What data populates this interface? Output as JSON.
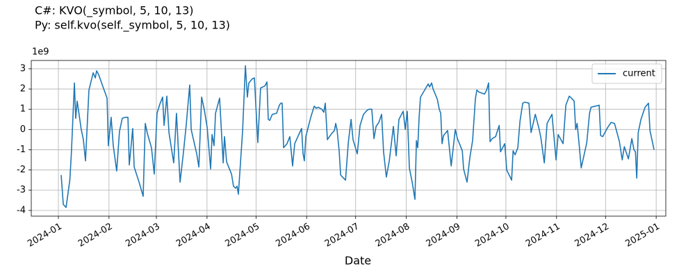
{
  "chart_data": {
    "type": "line",
    "title_lines": [
      "C#: KVO(_symbol, 5, 10, 13)",
      "Py:  self.kvo(self._symbol, 5, 10, 13)"
    ],
    "xlabel": "Date",
    "y_offset_label": "1e9",
    "x": [
      1.7,
      3,
      4.7,
      7,
      8,
      9.8,
      10.6,
      11.5,
      14,
      15.3,
      16.6,
      18.7,
      21.3,
      22.6,
      23.4,
      24.7,
      28,
      29.8,
      30.6,
      32.3,
      33.6,
      35.7,
      37.4,
      39.1,
      40.8,
      42.6,
      43.4,
      44.3,
      45.5,
      46.4,
      49.4,
      51.9,
      53.2,
      54.5,
      57,
      58.7,
      60.4,
      62.1,
      63.8,
      64.7,
      66.4,
      67.7,
      70.6,
      72.3,
      74.5,
      76.6,
      78.3,
      80.4,
      81.3,
      84.7,
      86,
      87.7,
      89.4,
      91.1,
      93.2,
      94.1,
      95.3,
      96.2,
      98.7,
      100.9,
      101.7,
      103,
      106,
      107.2,
      108.5,
      109.4,
      110.2,
      112.8,
      114.5,
      115.7,
      116.6,
      118.7,
      120,
      122.1,
      123.8,
      126.4,
      127.7,
      128.5,
      129.4,
      131,
      133.6,
      135.3,
      136.2,
      137,
      137.9,
      140,
      141.7,
      143.4,
      144.7,
      147.2,
      148.9,
      149.8,
      150.6,
      151.5,
      154.5,
      156.6,
      157.9,
      159.1,
      161.3,
      162.5,
      163.4,
      164.7,
      167.3,
      169,
      169.8,
      170.6,
      171.9,
      172.8,
      175.8,
      177.5,
      179.2,
      180.4,
      183,
      184.7,
      186.8,
      189,
      190.2,
      191.9,
      193.2,
      194.5,
      196.2,
      197.9,
      199.1,
      200.8,
      202.6,
      205.1,
      206.8,
      208.5,
      211.1,
      212.4,
      213.6,
      214.9,
      216.6,
      218.3,
      219.2,
      220,
      220.9,
      221.7,
      223.9,
      226.4,
      227.3,
      228.5,
      229.4,
      232,
      233.2,
      234.1,
      234.9,
      235.8,
      238.3,
      240.5,
      243,
      244.3,
      247.3,
      248.1,
      250.2,
      251.9,
      253.6,
      255.3,
      256.2,
      257.5,
      260.9,
      262.2,
      263.4,
      264.3,
      265.6,
      267.7,
      269.9,
      270.7,
      273.3,
      274.5,
      277.5,
      278.4,
      279.6,
      281.3,
      282.6,
      284.3,
      285.6,
      288.1,
      289.4,
      292,
      294.1,
      295.4,
      297.5,
      299.2,
      302.2,
      304.7,
      306,
      309,
      310.7,
      312.8,
      314.1,
      315.8,
      316.7,
      317.6,
      318.9,
      320.1,
      323.5,
      325.2,
      326.1,
      328.6,
      331.1,
      332,
      333.3,
      336.3,
      338.4,
      340.5,
      343.5,
      345.2,
      346.5,
      349,
      351.1,
      352.4,
      353.3,
      354.1,
      355,
      356.7,
      359.2,
      361.3,
      362.2,
      364.7
    ],
    "series": [
      {
        "name": "current",
        "color": "#1f77b4",
        "values": [
          -2.25,
          -3.7,
          -3.85,
          -2.5,
          -1.1,
          2.3,
          0.55,
          1.4,
          0,
          -0.5,
          -1.55,
          1.95,
          2.8,
          2.55,
          2.9,
          2.7,
          1.95,
          1.55,
          -0.8,
          0.6,
          -0.8,
          -2.05,
          -0.1,
          0.55,
          0.6,
          0.6,
          -1.75,
          -1.0,
          0.05,
          -1.85,
          -2.6,
          -3.3,
          0.3,
          -0.2,
          -0.9,
          -2.2,
          0.8,
          1.25,
          1.6,
          0.2,
          1.65,
          -0.15,
          -1.65,
          0.8,
          -2.6,
          -1.1,
          0.25,
          2.2,
          0,
          -1.2,
          -1.85,
          1.6,
          0.95,
          0.1,
          -1.95,
          -0.25,
          -0.8,
          0.8,
          1.55,
          -1.65,
          -0.35,
          -1.6,
          -2.2,
          -2.8,
          -2.9,
          -2.8,
          -3.2,
          -0.05,
          3.15,
          1.6,
          2.3,
          2.5,
          2.55,
          -0.65,
          2.05,
          2.15,
          2.35,
          0.5,
          0.45,
          0.75,
          0.8,
          1.2,
          1.3,
          1.3,
          -0.9,
          -0.7,
          -0.35,
          -1.8,
          -0.7,
          -0.25,
          0.05,
          -1.2,
          -1.55,
          -0.35,
          0.6,
          1.15,
          1.05,
          1.1,
          1.0,
          0.85,
          1.3,
          -0.5,
          -0.2,
          -0.05,
          0.3,
          0,
          -1.05,
          -2.25,
          -2.5,
          -0.65,
          0.5,
          -0.5,
          -1.2,
          0.2,
          0.75,
          0.95,
          1.0,
          1.0,
          -0.45,
          0.15,
          0.35,
          0.75,
          -1.1,
          -2.35,
          -1.55,
          0.15,
          -1.3,
          0.5,
          0.9,
          0,
          0.9,
          -1.9,
          -2.6,
          -3.45,
          -0.55,
          -0.9,
          0.65,
          1.6,
          1.9,
          2.25,
          2.1,
          2.3,
          2.0,
          1.5,
          1.0,
          0.8,
          -0.7,
          -0.3,
          -0.05,
          -1.8,
          0,
          -0.45,
          -1.05,
          -1.95,
          -2.6,
          -1.4,
          -0.55,
          1.5,
          1.95,
          1.85,
          1.75,
          1.95,
          2.3,
          -0.6,
          -0.45,
          -0.35,
          0.2,
          -1.1,
          -0.7,
          -2.0,
          -2.5,
          -1.05,
          -1.25,
          -0.9,
          0.4,
          1.3,
          1.35,
          1.3,
          -0.15,
          0.75,
          0.1,
          -0.4,
          -1.65,
          0.3,
          0.75,
          -1.5,
          -0.25,
          -0.7,
          1.2,
          1.65,
          1.55,
          1.4,
          0,
          0.3,
          -0.8,
          -1.9,
          -0.65,
          0.8,
          1.1,
          1.15,
          1.2,
          -0.3,
          -0.35,
          0.1,
          0.35,
          0.3,
          -0.6,
          -1.5,
          -0.85,
          -1.45,
          -0.45,
          -1.0,
          -1.1,
          -2.4,
          -0.15,
          0.5,
          1.1,
          1.3,
          -0.05,
          -1.0
        ]
      }
    ],
    "xlim": [
      -16.6,
      371.9
    ],
    "xticks": [
      {
        "value": 0,
        "label": "2024-01"
      },
      {
        "value": 31,
        "label": "2024-02"
      },
      {
        "value": 60,
        "label": "2024-03"
      },
      {
        "value": 91,
        "label": "2024-04"
      },
      {
        "value": 121,
        "label": "2024-05"
      },
      {
        "value": 152,
        "label": "2024-06"
      },
      {
        "value": 182,
        "label": "2024-07"
      },
      {
        "value": 213,
        "label": "2024-08"
      },
      {
        "value": 244,
        "label": "2024-09"
      },
      {
        "value": 274,
        "label": "2024-10"
      },
      {
        "value": 305,
        "label": "2024-11"
      },
      {
        "value": 335,
        "label": "2024-12"
      },
      {
        "value": 366,
        "label": "2025-01"
      }
    ],
    "ylim": [
      -4.28,
      3.41
    ],
    "yticks": [
      -4,
      -3,
      -2,
      -1,
      0,
      1,
      2,
      3
    ],
    "grid": true,
    "legend": "upper right"
  }
}
